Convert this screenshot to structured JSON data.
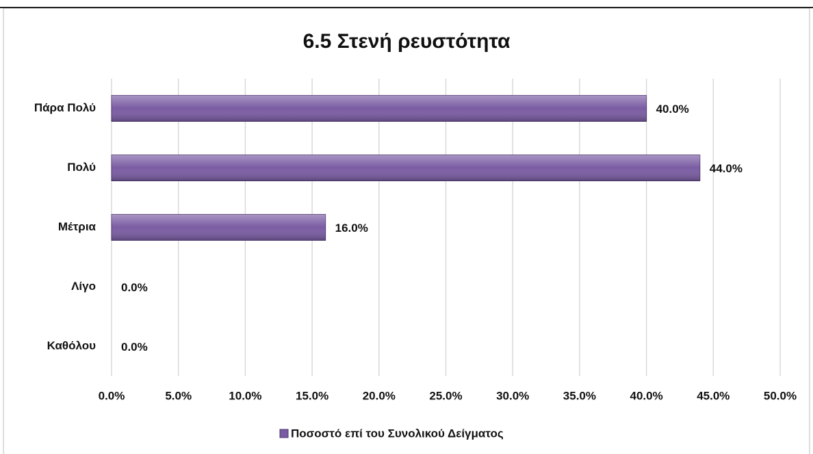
{
  "chart_data": {
    "type": "bar",
    "horizontal": true,
    "title": "6.5 Στενή ρευστότητα",
    "categories": [
      "Πάρα Πολύ",
      "Πολύ",
      "Μέτρια",
      "Λίγο",
      "Καθόλου"
    ],
    "series": [
      {
        "name": "Ποσοστό επί του Συνολικού Δείγματος",
        "color": "#7a5ca3",
        "values": [
          40,
          44,
          16,
          0,
          0
        ],
        "value_labels": [
          "40.0%",
          "44.0%",
          "16.0%",
          "0.0%",
          "0.0%"
        ]
      }
    ],
    "xlim": [
      0,
      50
    ],
    "xticks": [
      {
        "value": 0,
        "label": "0.0%"
      },
      {
        "value": 5,
        "label": "5.0%"
      },
      {
        "value": 10,
        "label": "10.0%"
      },
      {
        "value": 15,
        "label": "15.0%"
      },
      {
        "value": 20,
        "label": "20.0%"
      },
      {
        "value": 25,
        "label": "25.0%"
      },
      {
        "value": 30,
        "label": "30.0%"
      },
      {
        "value": 35,
        "label": "35.0%"
      },
      {
        "value": 40,
        "label": "40.0%"
      },
      {
        "value": 45,
        "label": "45.0%"
      },
      {
        "value": 50,
        "label": "50.0%"
      }
    ],
    "grid": true,
    "legend": "bottom"
  }
}
